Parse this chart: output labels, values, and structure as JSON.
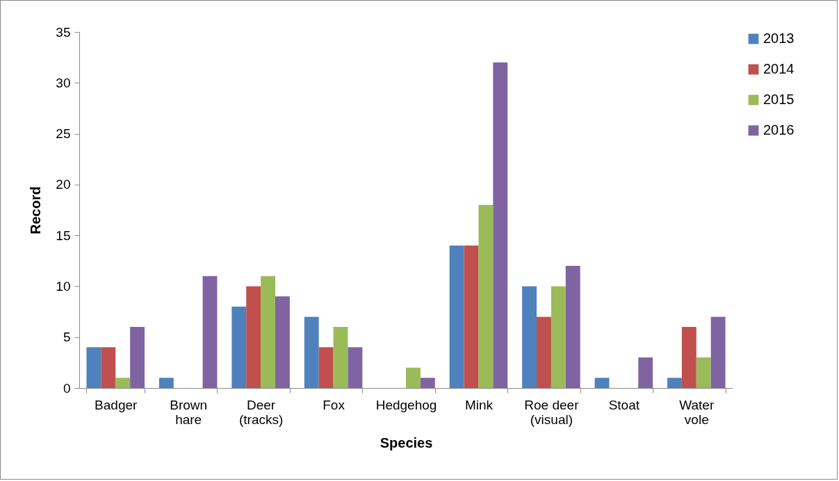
{
  "chart_data": {
    "type": "bar",
    "xlabel": "Species",
    "ylabel": "Record",
    "categories": [
      "Badger",
      "Brown hare",
      "Deer (tracks)",
      "Fox",
      "Hedgehog",
      "Mink",
      "Roe deer (visual)",
      "Stoat",
      "Water vole"
    ],
    "series": [
      {
        "name": "2013",
        "color": "#4f81bd",
        "values": [
          4,
          1,
          8,
          7,
          0,
          14,
          10,
          1,
          1
        ]
      },
      {
        "name": "2014",
        "color": "#c0504d",
        "values": [
          4,
          0,
          10,
          4,
          0,
          14,
          7,
          0,
          6
        ]
      },
      {
        "name": "2015",
        "color": "#9bbb59",
        "values": [
          1,
          0,
          11,
          6,
          2,
          18,
          10,
          0,
          3
        ]
      },
      {
        "name": "2016",
        "color": "#8064a2",
        "values": [
          6,
          11,
          9,
          4,
          1,
          32,
          12,
          3,
          7
        ]
      }
    ],
    "ylim": [
      0,
      35
    ],
    "yticks": [
      0,
      5,
      10,
      15,
      20,
      25,
      30,
      35
    ],
    "grid": false,
    "legend": "right"
  }
}
